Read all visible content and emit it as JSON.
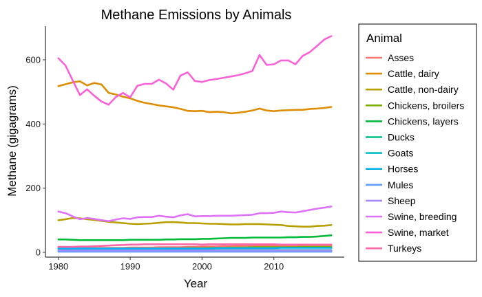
{
  "chart_data": {
    "type": "line",
    "title": "Methane Emissions by Animals",
    "xlabel": "Year",
    "ylabel": "Methane (gigagrams)",
    "x": [
      1980,
      1981,
      1982,
      1983,
      1984,
      1985,
      1986,
      1987,
      1988,
      1989,
      1990,
      1991,
      1992,
      1993,
      1994,
      1995,
      1996,
      1997,
      1998,
      1999,
      2000,
      2001,
      2002,
      2003,
      2004,
      2005,
      2006,
      2007,
      2008,
      2009,
      2010,
      2011,
      2012,
      2013,
      2014,
      2015,
      2016,
      2017,
      2018
    ],
    "xlim": [
      1978.2,
      2019.8
    ],
    "ylim": [
      -15,
      705
    ],
    "x_ticks": [
      1980,
      1990,
      2000,
      2010
    ],
    "y_ticks": [
      0,
      200,
      400,
      600
    ],
    "grid": false,
    "legend": {
      "title": "Animal",
      "position": "right"
    },
    "series": [
      {
        "name": "Asses",
        "color": "#F8766D",
        "values": [
          14,
          14,
          14,
          14,
          14,
          14,
          14,
          14,
          14,
          14,
          15,
          15,
          15,
          15,
          16,
          16,
          16,
          16,
          17,
          17,
          18,
          18,
          18,
          19,
          19,
          20,
          20,
          21,
          21,
          21,
          21,
          21,
          21,
          21,
          21,
          21,
          21,
          21,
          21
        ]
      },
      {
        "name": "Cattle, dairy",
        "color": "#DE8C00",
        "values": [
          518,
          524,
          530,
          533,
          520,
          528,
          523,
          497,
          492,
          485,
          480,
          472,
          466,
          462,
          458,
          455,
          452,
          447,
          441,
          440,
          441,
          437,
          438,
          437,
          433,
          435,
          438,
          442,
          448,
          442,
          440,
          442,
          443,
          444,
          444,
          447,
          448,
          450,
          453
        ]
      },
      {
        "name": "Cattle, non-dairy",
        "color": "#B79F00",
        "values": [
          100,
          103,
          107,
          106,
          103,
          101,
          98,
          95,
          93,
          91,
          89,
          88,
          89,
          90,
          92,
          94,
          94,
          93,
          91,
          91,
          90,
          89,
          89,
          88,
          87,
          87,
          88,
          88,
          88,
          87,
          86,
          85,
          82,
          81,
          80,
          80,
          82,
          83,
          85
        ]
      },
      {
        "name": "Chickens, broilers",
        "color": "#7CAE00",
        "values": [
          7,
          7,
          7,
          8,
          8,
          8,
          9,
          9,
          9,
          10,
          10,
          10,
          11,
          11,
          11,
          12,
          12,
          12,
          13,
          13,
          13,
          14,
          14,
          14,
          15,
          15,
          15,
          16,
          16,
          16,
          16,
          16,
          16,
          16,
          17,
          17,
          17,
          17,
          17
        ]
      },
      {
        "name": "Chickens, layers",
        "color": "#00BA38",
        "values": [
          40,
          40,
          39,
          38,
          38,
          38,
          38,
          38,
          38,
          38,
          39,
          39,
          39,
          39,
          39,
          40,
          40,
          41,
          41,
          41,
          42,
          42,
          43,
          44,
          45,
          45,
          45,
          46,
          46,
          46,
          46,
          46,
          47,
          47,
          48,
          48,
          49,
          51,
          53
        ]
      },
      {
        "name": "Ducks",
        "color": "#00C08B",
        "values": [
          7,
          7,
          7,
          7,
          7,
          7,
          7,
          7,
          7,
          7,
          7,
          7,
          7,
          7,
          7,
          7,
          7,
          7,
          7,
          7,
          7,
          7,
          7,
          7,
          7,
          7,
          7,
          7,
          7,
          7,
          7,
          7,
          7,
          7,
          7,
          7,
          7,
          7,
          7
        ]
      },
      {
        "name": "Goats",
        "color": "#00BFC4",
        "values": [
          3,
          3,
          3,
          3,
          3,
          3,
          3,
          3,
          3,
          3,
          3,
          3,
          3,
          3,
          3,
          3,
          3,
          3,
          3,
          3,
          3,
          3,
          3,
          3,
          3,
          3,
          3,
          3,
          3,
          3,
          3,
          3,
          3,
          3,
          3,
          3,
          3,
          3,
          3
        ]
      },
      {
        "name": "Horses",
        "color": "#00B4F0",
        "values": [
          12,
          12,
          12,
          12,
          12,
          12,
          12,
          12,
          12,
          12,
          12,
          12,
          12,
          12,
          12,
          12,
          12,
          12,
          12,
          12,
          12,
          12,
          13,
          13,
          13,
          13,
          13,
          13,
          13,
          13,
          13,
          14,
          14,
          14,
          14,
          14,
          14,
          14,
          14
        ]
      },
      {
        "name": "Mules",
        "color": "#619CFF",
        "values": [
          2,
          2,
          2,
          2,
          2,
          2,
          2,
          2,
          2,
          2,
          2,
          2,
          2,
          2,
          2,
          2,
          2,
          2,
          2,
          2,
          2,
          2,
          2,
          2,
          2,
          2,
          2,
          2,
          2,
          2,
          2,
          2,
          2,
          2,
          2,
          2,
          2,
          2,
          2
        ]
      },
      {
        "name": "Sheep",
        "color": "#A58AFF",
        "values": [
          6,
          6,
          6,
          6,
          6,
          6,
          6,
          6,
          6,
          6,
          6,
          6,
          6,
          6,
          6,
          6,
          6,
          6,
          6,
          6,
          6,
          6,
          6,
          6,
          6,
          6,
          6,
          6,
          6,
          6,
          6,
          6,
          6,
          6,
          6,
          6,
          6,
          6,
          6
        ]
      },
      {
        "name": "Swine, breeding",
        "color": "#DF70F8",
        "values": [
          127,
          122,
          112,
          103,
          107,
          104,
          100,
          97,
          102,
          106,
          104,
          109,
          110,
          110,
          114,
          111,
          109,
          115,
          119,
          112,
          113,
          113,
          114,
          114,
          114,
          115,
          116,
          117,
          122,
          122,
          123,
          127,
          125,
          124,
          128,
          132,
          136,
          139,
          143
        ]
      },
      {
        "name": "Swine, market",
        "color": "#FB61D7",
        "values": [
          605,
          582,
          536,
          490,
          508,
          488,
          470,
          460,
          484,
          497,
          483,
          519,
          525,
          525,
          538,
          526,
          507,
          551,
          561,
          534,
          531,
          537,
          540,
          544,
          548,
          552,
          558,
          565,
          615,
          584,
          586,
          598,
          598,
          586,
          612,
          624,
          643,
          663,
          674
        ]
      },
      {
        "name": "Turkeys",
        "color": "#FF66A8",
        "values": [
          17,
          17,
          17,
          18,
          18,
          19,
          20,
          21,
          22,
          23,
          24,
          24,
          25,
          25,
          25,
          25,
          25,
          25,
          25,
          25,
          24,
          25,
          25,
          25,
          25,
          25,
          25,
          25,
          25,
          25,
          25,
          24,
          24,
          24,
          24,
          24,
          24,
          24,
          24
        ]
      }
    ]
  }
}
